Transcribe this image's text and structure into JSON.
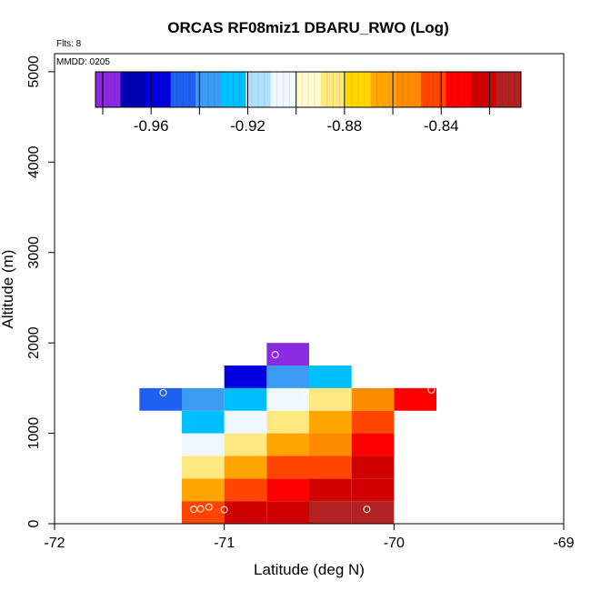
{
  "chart_data": {
    "type": "heatmap",
    "title": "ORCAS RF08miz1 DBARU_RWO (Log)",
    "flights_note": "Flts: 8",
    "date_note": "MMDD: 0205",
    "xlabel": "Latitude (deg N)",
    "ylabel": "Altitude (m)",
    "xlim": [
      -72,
      -69
    ],
    "ylim": [
      0,
      5200
    ],
    "x_ticks": [
      -72,
      -71,
      -70,
      -69
    ],
    "x_tick_labels": [
      "-72",
      "-71",
      "-70",
      "-69"
    ],
    "y_ticks": [
      0,
      1000,
      2000,
      3000,
      4000,
      5000
    ],
    "y_tick_labels": [
      "0",
      "1000",
      "2000",
      "3000",
      "4000",
      "5000"
    ],
    "cell_width_deg": 0.25,
    "cell_height_m": 250,
    "colorbar": {
      "range": [
        -0.983,
        -0.807
      ],
      "ticks": [
        -0.96,
        -0.92,
        -0.88,
        -0.84
      ],
      "tick_labels": [
        "-0.96",
        "-0.92",
        "-0.88",
        "-0.84"
      ],
      "colors": [
        "#8a2be2",
        "#0000b0",
        "#0000e0",
        "#1e60f0",
        "#3c9cf5",
        "#00bfff",
        "#b0e0ff",
        "#f0f8ff",
        "#fffacd",
        "#ffe880",
        "#ffd700",
        "#ffa500",
        "#ff8c00",
        "#ff4500",
        "#ff0000",
        "#d00000",
        "#b22222"
      ]
    },
    "cells": [
      {
        "lat": -71.25,
        "alt": 0,
        "value": -0.845
      },
      {
        "lat": -71.0,
        "alt": 0,
        "value": -0.822
      },
      {
        "lat": -70.75,
        "alt": 0,
        "value": -0.818
      },
      {
        "lat": -70.5,
        "alt": 0,
        "value": -0.812
      },
      {
        "lat": -70.25,
        "alt": 0,
        "value": -0.81
      },
      {
        "lat": -71.25,
        "alt": 250,
        "value": -0.86
      },
      {
        "lat": -71.0,
        "alt": 250,
        "value": -0.843
      },
      {
        "lat": -70.75,
        "alt": 250,
        "value": -0.833
      },
      {
        "lat": -70.5,
        "alt": 250,
        "value": -0.822
      },
      {
        "lat": -70.25,
        "alt": 250,
        "value": -0.818
      },
      {
        "lat": -71.25,
        "alt": 500,
        "value": -0.887
      },
      {
        "lat": -71.0,
        "alt": 500,
        "value": -0.863
      },
      {
        "lat": -70.75,
        "alt": 500,
        "value": -0.845
      },
      {
        "lat": -70.5,
        "alt": 500,
        "value": -0.84
      },
      {
        "lat": -70.25,
        "alt": 500,
        "value": -0.823
      },
      {
        "lat": -71.25,
        "alt": 750,
        "value": -0.905
      },
      {
        "lat": -71.0,
        "alt": 750,
        "value": -0.885
      },
      {
        "lat": -70.75,
        "alt": 750,
        "value": -0.866
      },
      {
        "lat": -70.5,
        "alt": 750,
        "value": -0.855
      },
      {
        "lat": -70.25,
        "alt": 750,
        "value": -0.832
      },
      {
        "lat": -71.25,
        "alt": 1000,
        "value": -0.925
      },
      {
        "lat": -71.0,
        "alt": 1000,
        "value": -0.905
      },
      {
        "lat": -70.75,
        "alt": 1000,
        "value": -0.888
      },
      {
        "lat": -70.5,
        "alt": 1000,
        "value": -0.868
      },
      {
        "lat": -70.25,
        "alt": 1000,
        "value": -0.845
      },
      {
        "lat": -71.5,
        "alt": 1250,
        "value": -0.95
      },
      {
        "lat": -71.25,
        "alt": 1250,
        "value": -0.937
      },
      {
        "lat": -71.0,
        "alt": 1250,
        "value": -0.925
      },
      {
        "lat": -70.75,
        "alt": 1250,
        "value": -0.905
      },
      {
        "lat": -70.5,
        "alt": 1250,
        "value": -0.885
      },
      {
        "lat": -70.25,
        "alt": 1250,
        "value": -0.855
      },
      {
        "lat": -70.0,
        "alt": 1250,
        "value": -0.833
      },
      {
        "lat": -71.0,
        "alt": 1500,
        "value": -0.962
      },
      {
        "lat": -70.75,
        "alt": 1500,
        "value": -0.94
      },
      {
        "lat": -70.5,
        "alt": 1500,
        "value": -0.925
      },
      {
        "lat": -70.75,
        "alt": 1750,
        "value": -0.978
      }
    ],
    "points": [
      {
        "lat": -71.36,
        "alt": 1450
      },
      {
        "lat": -71.18,
        "alt": 160
      },
      {
        "lat": -71.14,
        "alt": 165
      },
      {
        "lat": -71.09,
        "alt": 185
      },
      {
        "lat": -71.0,
        "alt": 155
      },
      {
        "lat": -70.7,
        "alt": 1870
      },
      {
        "lat": -70.53,
        "alt": 1460
      },
      {
        "lat": -70.16,
        "alt": 160
      },
      {
        "lat": -69.78,
        "alt": 1480
      }
    ]
  }
}
